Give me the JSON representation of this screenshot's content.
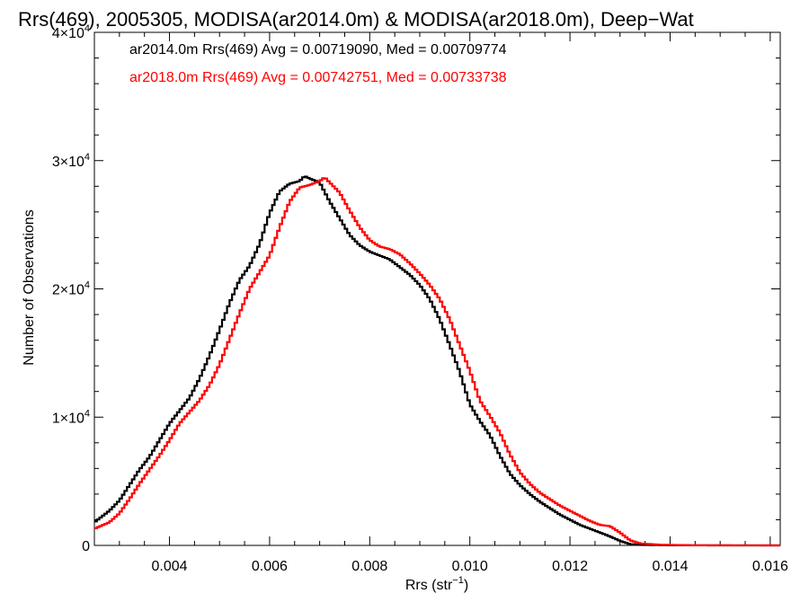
{
  "chart_data": {
    "type": "line",
    "title": "Rrs(469), 2005305, MODISA(ar2014.0m) & MODISA(ar2018.0m), Deep−Wat",
    "xlabel_main": "Rrs (str",
    "xlabel_sup": "−1",
    "xlabel_close": ")",
    "ylabel": "Number of Observations",
    "xlim": [
      0.0025,
      0.0162
    ],
    "ylim": [
      0,
      40000
    ],
    "grid": false,
    "x_ticks": [
      {
        "value": 0.004,
        "label": "0.004"
      },
      {
        "value": 0.006,
        "label": "0.006"
      },
      {
        "value": 0.008,
        "label": "0.008"
      },
      {
        "value": 0.01,
        "label": "0.010"
      },
      {
        "value": 0.012,
        "label": "0.012"
      },
      {
        "value": 0.014,
        "label": "0.014"
      },
      {
        "value": 0.016,
        "label": "0.016"
      }
    ],
    "y_ticks": [
      {
        "value": 0,
        "label": "0",
        "sup": ""
      },
      {
        "value": 10000,
        "label": "1×10",
        "sup": "4"
      },
      {
        "value": 20000,
        "label": "2×10",
        "sup": "4"
      },
      {
        "value": 30000,
        "label": "3×10",
        "sup": "4"
      },
      {
        "value": 40000,
        "label": "4×10",
        "sup": "4"
      }
    ],
    "series": [
      {
        "name": "ar2014.0m",
        "color": "#000000",
        "stats": "ar2014.0m Rrs(469) Avg = 0.00719090, Med = 0.00709774",
        "points": [
          [
            0.0025,
            1800
          ],
          [
            0.0028,
            2700
          ],
          [
            0.003,
            3500
          ],
          [
            0.0032,
            4700
          ],
          [
            0.0034,
            5900
          ],
          [
            0.0036,
            6900
          ],
          [
            0.0038,
            8200
          ],
          [
            0.004,
            9500
          ],
          [
            0.0042,
            10500
          ],
          [
            0.0044,
            11500
          ],
          [
            0.0046,
            13000
          ],
          [
            0.0048,
            14800
          ],
          [
            0.005,
            16800
          ],
          [
            0.0052,
            18900
          ],
          [
            0.0054,
            20700
          ],
          [
            0.0056,
            21800
          ],
          [
            0.0058,
            23500
          ],
          [
            0.006,
            25900
          ],
          [
            0.0062,
            27600
          ],
          [
            0.0064,
            28200
          ],
          [
            0.0066,
            28400
          ],
          [
            0.0067,
            28800
          ],
          [
            0.0068,
            28600
          ],
          [
            0.007,
            28300
          ],
          [
            0.0072,
            26800
          ],
          [
            0.0074,
            25500
          ],
          [
            0.0076,
            24200
          ],
          [
            0.0078,
            23400
          ],
          [
            0.008,
            22900
          ],
          [
            0.0082,
            22600
          ],
          [
            0.0084,
            22300
          ],
          [
            0.0086,
            21700
          ],
          [
            0.0088,
            21100
          ],
          [
            0.009,
            20300
          ],
          [
            0.0092,
            19200
          ],
          [
            0.0094,
            17600
          ],
          [
            0.0096,
            15600
          ],
          [
            0.0098,
            13500
          ],
          [
            0.01,
            11000
          ],
          [
            0.0102,
            9700
          ],
          [
            0.0104,
            8600
          ],
          [
            0.0106,
            7000
          ],
          [
            0.0108,
            5600
          ],
          [
            0.011,
            4700
          ],
          [
            0.0112,
            4000
          ],
          [
            0.0114,
            3400
          ],
          [
            0.0116,
            2900
          ],
          [
            0.0118,
            2400
          ],
          [
            0.012,
            2000
          ],
          [
            0.0122,
            1600
          ],
          [
            0.0124,
            1300
          ],
          [
            0.0126,
            1000
          ],
          [
            0.0128,
            700
          ],
          [
            0.013,
            350
          ],
          [
            0.0132,
            100
          ],
          [
            0.0134,
            40
          ],
          [
            0.014,
            10
          ],
          [
            0.015,
            0
          ],
          [
            0.0162,
            0
          ]
        ]
      },
      {
        "name": "ar2018.0m",
        "color": "#ff0000",
        "stats": "ar2018.0m Rrs(469) Avg = 0.00742751, Med = 0.00733738",
        "points": [
          [
            0.0025,
            1300
          ],
          [
            0.0028,
            1800
          ],
          [
            0.003,
            2500
          ],
          [
            0.0032,
            3600
          ],
          [
            0.0034,
            4800
          ],
          [
            0.0036,
            5900
          ],
          [
            0.0038,
            7000
          ],
          [
            0.004,
            8200
          ],
          [
            0.0042,
            9500
          ],
          [
            0.0044,
            10400
          ],
          [
            0.0046,
            11300
          ],
          [
            0.0048,
            12500
          ],
          [
            0.005,
            14100
          ],
          [
            0.0052,
            16100
          ],
          [
            0.0054,
            18100
          ],
          [
            0.0056,
            20000
          ],
          [
            0.0058,
            21300
          ],
          [
            0.006,
            22600
          ],
          [
            0.0062,
            24800
          ],
          [
            0.0064,
            26800
          ],
          [
            0.0066,
            27900
          ],
          [
            0.0068,
            28100
          ],
          [
            0.007,
            28400
          ],
          [
            0.0071,
            28700
          ],
          [
            0.0072,
            28300
          ],
          [
            0.0074,
            27500
          ],
          [
            0.0076,
            26100
          ],
          [
            0.0078,
            24800
          ],
          [
            0.008,
            23800
          ],
          [
            0.0082,
            23300
          ],
          [
            0.0084,
            23100
          ],
          [
            0.0086,
            22700
          ],
          [
            0.0088,
            22000
          ],
          [
            0.009,
            21200
          ],
          [
            0.0092,
            20300
          ],
          [
            0.0094,
            19200
          ],
          [
            0.0096,
            17600
          ],
          [
            0.0098,
            15600
          ],
          [
            0.01,
            13600
          ],
          [
            0.0102,
            11300
          ],
          [
            0.0104,
            10100
          ],
          [
            0.0106,
            8800
          ],
          [
            0.0108,
            7100
          ],
          [
            0.011,
            5700
          ],
          [
            0.0112,
            4800
          ],
          [
            0.0114,
            4100
          ],
          [
            0.0116,
            3600
          ],
          [
            0.0118,
            3100
          ],
          [
            0.012,
            2700
          ],
          [
            0.0122,
            2300
          ],
          [
            0.0124,
            1900
          ],
          [
            0.0126,
            1600
          ],
          [
            0.0128,
            1500
          ],
          [
            0.013,
            1000
          ],
          [
            0.0132,
            400
          ],
          [
            0.0134,
            150
          ],
          [
            0.0138,
            50
          ],
          [
            0.0145,
            10
          ],
          [
            0.0162,
            0
          ]
        ]
      }
    ]
  }
}
